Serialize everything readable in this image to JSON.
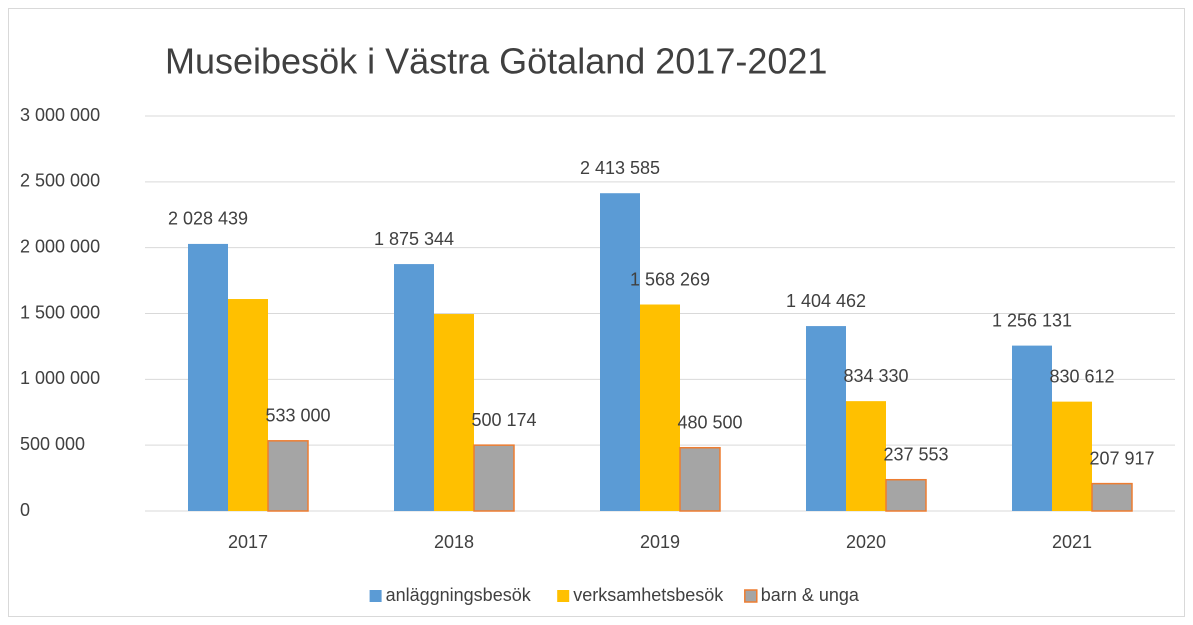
{
  "chart_data": {
    "type": "bar",
    "title": "Museibesök i Västra Götaland 2017-2021",
    "categories": [
      "2017",
      "2018",
      "2019",
      "2020",
      "2021"
    ],
    "series": [
      {
        "name": "anläggningsbesök",
        "color": "#5b9bd5",
        "values": [
          2028439,
          1875344,
          2413585,
          1404462,
          1256131
        ],
        "value_labels": [
          "2 028 439",
          "1 875 344",
          "2 413 585",
          "1 404 462",
          "1 256 131"
        ]
      },
      {
        "name": "verksamhetsbesök",
        "color": "#ffc000",
        "values": [
          1610000,
          1496000,
          1568269,
          834330,
          830612
        ],
        "value_labels": [
          null,
          null,
          "1 568 269",
          "834 330",
          "830 612"
        ]
      },
      {
        "name": "barn & unga",
        "color": "#a5a5a5",
        "border": "#ed7d31",
        "values": [
          533000,
          500174,
          480500,
          237553,
          207917
        ],
        "value_labels": [
          "533 000",
          "500 174",
          "480 500",
          "237 553",
          "207 917"
        ]
      }
    ],
    "ylim": [
      0,
      3000000
    ],
    "yticks": [
      0,
      {
        "value": 500000,
        "label": "500 000"
      },
      {
        "value": 1000000,
        "label": "1 000 000"
      },
      {
        "value": 1500000,
        "label": "1 500 000"
      },
      {
        "value": 2000000,
        "label": "2 000 000"
      },
      {
        "value": 2500000,
        "label": "2 500 000"
      },
      {
        "value": 3000000,
        "label": "3 000 000"
      }
    ],
    "grid": true,
    "legend": "bottom"
  }
}
